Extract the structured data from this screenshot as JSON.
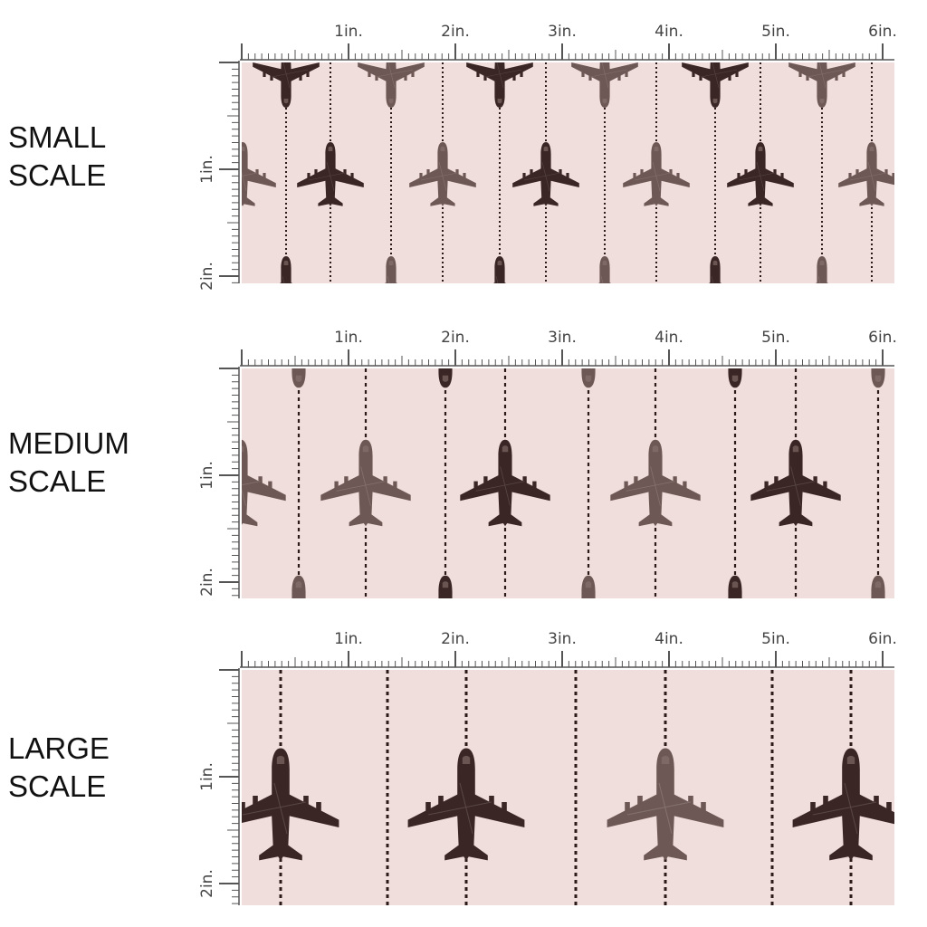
{
  "panels": [
    {
      "id": "small",
      "label_line1": "SMALL",
      "label_line2": "SCALE",
      "plane_scale": 0.42,
      "rows": [
        {
          "kind": "nose-down",
          "y": 0.05
        },
        {
          "kind": "nose-up",
          "y": 0.48
        },
        {
          "kind": "tail-up",
          "y": 0.93
        }
      ]
    },
    {
      "id": "medium",
      "label_line1": "MEDIUM",
      "label_line2": "SCALE",
      "plane_scale": 0.6,
      "rows": []
    },
    {
      "id": "large",
      "label_line1": "LARGE",
      "label_line2": "SCALE",
      "plane_scale": 0.78,
      "rows": []
    }
  ],
  "ruler": {
    "top_labels": [
      "1in.",
      "2in.",
      "3in.",
      "4in.",
      "5in.",
      "6in."
    ],
    "side_labels": [
      "1in.",
      "2in."
    ]
  },
  "colors": {
    "fabric": "#f0dedc",
    "plane_dark": "#3a2624",
    "plane_light": "#6e5855",
    "ruler": "#555555",
    "dash": "#2b1a18"
  }
}
